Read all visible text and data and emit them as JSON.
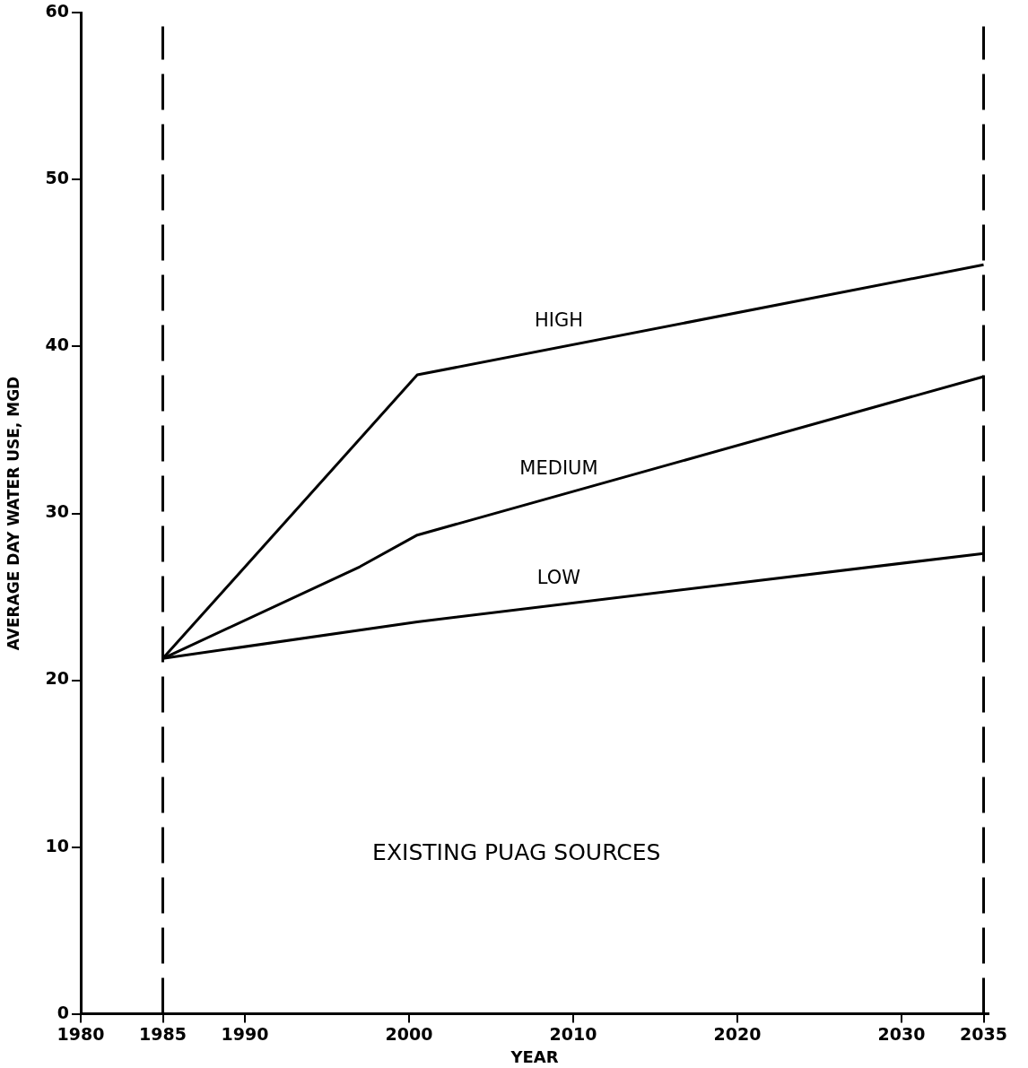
{
  "chart_data": {
    "type": "line",
    "xlabel": "YEAR",
    "ylabel": "AVERAGE DAY WATER USE, MGD",
    "xlim": [
      1980,
      2035.3
    ],
    "xticks": [
      1980,
      1985,
      1990,
      2000,
      2010,
      2020,
      2030,
      2035
    ],
    "ylim": [
      0,
      60
    ],
    "yticks": [
      0,
      10,
      20,
      30,
      40,
      50,
      60
    ],
    "series": [
      {
        "name": "HIGH",
        "color": "#000000",
        "x": [
          1985,
          2000.5,
          2035
        ],
        "values": [
          21.3,
          38.3,
          44.9
        ]
      },
      {
        "name": "MEDIUM",
        "color": "#000000",
        "x": [
          1985,
          1997,
          2000.5,
          2035
        ],
        "values": [
          21.3,
          26.8,
          28.7,
          38.2
        ]
      },
      {
        "name": "LOW",
        "color": "#000000",
        "x": [
          1985,
          2000.5,
          2035
        ],
        "values": [
          21.3,
          23.5,
          27.6
        ]
      }
    ],
    "ref_lines": [
      {
        "axis": "x",
        "value": 1985,
        "color": "#000000",
        "line_style": "dashed"
      },
      {
        "axis": "x",
        "value": 2035,
        "color": "#000000",
        "line_style": "dashed"
      }
    ],
    "annotations": [
      "EXISTING PUAG SOURCES"
    ],
    "grid": false,
    "legend": false,
    "marker": "none",
    "line_style": "solid"
  }
}
